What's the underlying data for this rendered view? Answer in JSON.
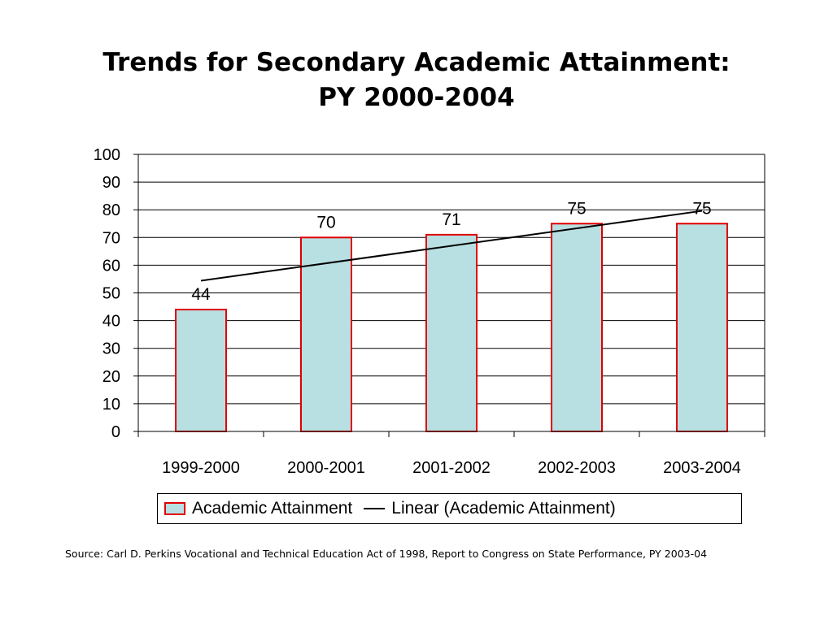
{
  "title_lines": [
    "Trends for Secondary Academic Attainment:",
    "PY 2000-2004"
  ],
  "colors": {
    "bar_fill": "#b8dfe2",
    "bar_border": "#e00000",
    "trendline": "#000000",
    "gridline": "#000000"
  },
  "chart_data": {
    "type": "bar",
    "title": "Trends for Secondary Academic Attainment: PY 2000-2004",
    "categories": [
      "1999-2000",
      "2000-2001",
      "2001-2002",
      "2002-2003",
      "2003-2004"
    ],
    "series": [
      {
        "name": "Academic Attainment",
        "values": [
          44,
          70,
          71,
          75,
          75
        ],
        "data_labels": [
          "44",
          "70",
          "71",
          "75",
          "75"
        ]
      }
    ],
    "trendline": {
      "name": "Linear (Academic Attainment)",
      "type": "linear",
      "start": 54.4,
      "end": 79.6
    },
    "ylim": [
      0,
      100
    ],
    "yticks": [
      0,
      10,
      20,
      30,
      40,
      50,
      60,
      70,
      80,
      90,
      100
    ],
    "ytick_labels": [
      "0",
      "10",
      "20",
      "30",
      "40",
      "50",
      "60",
      "70",
      "80",
      "90",
      "100"
    ],
    "xlabel": "",
    "ylabel": "",
    "grid": true,
    "legend": "bottom"
  },
  "legend": {
    "bar_label": "Academic Attainment",
    "line_label": "Linear (Academic Attainment)"
  },
  "source_note": "Source: Carl D. Perkins Vocational and Technical Education Act of 1998, Report to Congress on State Performance, PY 2003-04"
}
